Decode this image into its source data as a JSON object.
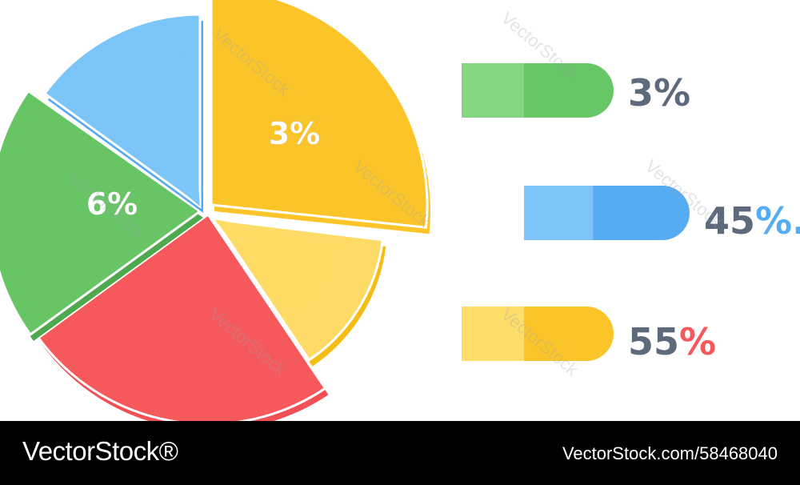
{
  "chart_data": [
    {
      "type": "pie",
      "slices": [
        {
          "label": "3%",
          "color": "#fbc52a",
          "shade": "#fbc52a",
          "exploded": true
        },
        {
          "label": "",
          "color": "#fedb66",
          "shade": "#f5bd14"
        },
        {
          "label": "",
          "color": "#f5595b",
          "shade": "#f25055"
        },
        {
          "label": "6%",
          "color": "#68c566",
          "shade": "#4ea94e"
        },
        {
          "label": "",
          "color": "#7cc5f8",
          "shade": "#55a9f2"
        }
      ]
    },
    {
      "type": "bar",
      "bars": [
        {
          "label": "3%",
          "value_text": "3",
          "percent_sign": "%",
          "color_light": "#84d680",
          "color_dark": "#67c666",
          "sign_color": "#5d6a7b"
        },
        {
          "label": "45%",
          "value_text": "45",
          "percent_sign": "%.",
          "color_light": "#7cc4f9",
          "color_dark": "#56acf3",
          "sign_color": "#56acf3"
        },
        {
          "label": "55%",
          "value_text": "55",
          "percent_sign": "%",
          "color_light": "#fedd68",
          "color_dark": "#fbc52a",
          "sign_color": "#f5595b"
        }
      ]
    }
  ],
  "watermark": "VectorStock",
  "footer": {
    "brand": "VectorStock®",
    "image_id": "VectorStock.com/58468040"
  },
  "colors": {
    "label_gray": "#5d6a7b",
    "background": "#ffffff"
  }
}
